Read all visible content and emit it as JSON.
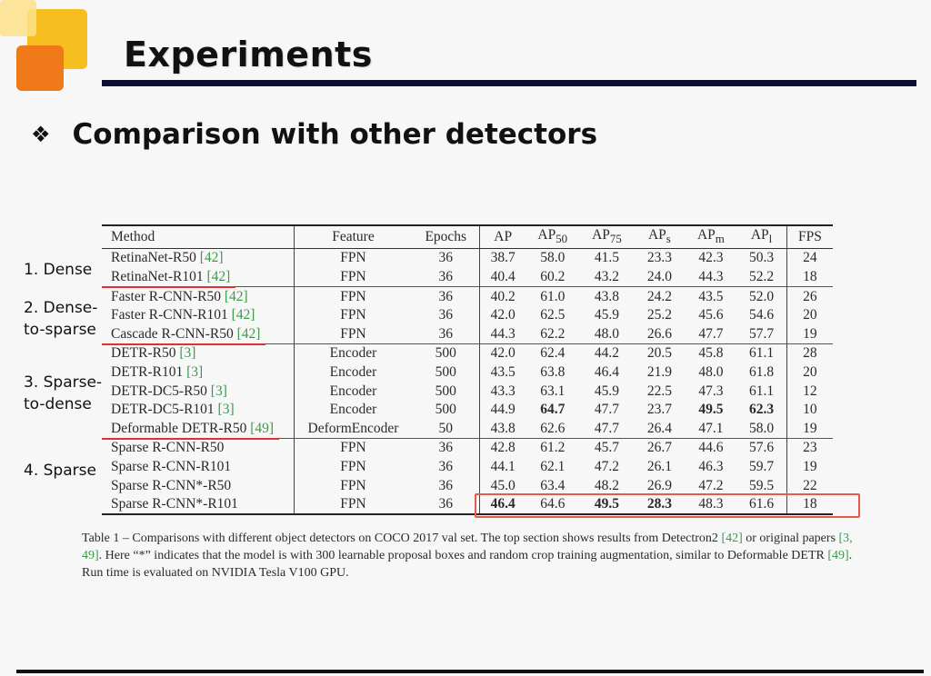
{
  "slide": {
    "title": "Experiments",
    "subtitle": "Comparison with other detectors",
    "subtitle_bullet": "❖"
  },
  "side_labels": [
    {
      "lines": [
        "1. Dense"
      ]
    },
    {
      "lines": [
        "2. Dense-",
        "to-sparse"
      ]
    },
    {
      "lines": [
        "3. Sparse-",
        "to-dense"
      ]
    },
    {
      "lines": [
        "4. Sparse"
      ]
    }
  ],
  "table": {
    "headers": {
      "method": "Method",
      "feature": "Feature",
      "epochs": "Epochs",
      "ap": "AP",
      "ap50_base": "AP",
      "ap50_sub": "50",
      "ap75_base": "AP",
      "ap75_sub": "75",
      "aps_base": "AP",
      "aps_sub": "s",
      "apm_base": "AP",
      "apm_sub": "m",
      "apl_base": "AP",
      "apl_sub": "l",
      "fps": "FPS"
    },
    "rows": [
      {
        "method": "RetinaNet-R50",
        "ref": "[42]",
        "feature": "FPN",
        "epochs": "36",
        "ap": "38.7",
        "ap50": "58.0",
        "ap75": "41.5",
        "aps": "23.3",
        "apm": "42.3",
        "apl": "50.3",
        "fps": "24"
      },
      {
        "method": "RetinaNet-R101",
        "ref": "[42]",
        "feature": "FPN",
        "epochs": "36",
        "ap": "40.4",
        "ap50": "60.2",
        "ap75": "43.2",
        "aps": "24.0",
        "apm": "44.3",
        "apl": "52.2",
        "fps": "18"
      },
      {
        "method": "Faster R-CNN-R50",
        "ref": "[42]",
        "feature": "FPN",
        "epochs": "36",
        "ap": "40.2",
        "ap50": "61.0",
        "ap75": "43.8",
        "aps": "24.2",
        "apm": "43.5",
        "apl": "52.0",
        "fps": "26"
      },
      {
        "method": "Faster R-CNN-R101",
        "ref": "[42]",
        "feature": "FPN",
        "epochs": "36",
        "ap": "42.0",
        "ap50": "62.5",
        "ap75": "45.9",
        "aps": "25.2",
        "apm": "45.6",
        "apl": "54.6",
        "fps": "20"
      },
      {
        "method": "Cascade R-CNN-R50",
        "ref": "[42]",
        "feature": "FPN",
        "epochs": "36",
        "ap": "44.3",
        "ap50": "62.2",
        "ap75": "48.0",
        "aps": "26.6",
        "apm": "47.7",
        "apl": "57.7",
        "fps": "19"
      },
      {
        "method": "DETR-R50",
        "ref": "[3]",
        "feature": "Encoder",
        "epochs": "500",
        "ap": "42.0",
        "ap50": "62.4",
        "ap75": "44.2",
        "aps": "20.5",
        "apm": "45.8",
        "apl": "61.1",
        "fps": "28"
      },
      {
        "method": "DETR-R101",
        "ref": "[3]",
        "feature": "Encoder",
        "epochs": "500",
        "ap": "43.5",
        "ap50": "63.8",
        "ap75": "46.4",
        "aps": "21.9",
        "apm": "48.0",
        "apl": "61.8",
        "fps": "20"
      },
      {
        "method": "DETR-DC5-R50",
        "ref": "[3]",
        "feature": "Encoder",
        "epochs": "500",
        "ap": "43.3",
        "ap50": "63.1",
        "ap75": "45.9",
        "aps": "22.5",
        "apm": "47.3",
        "apl": "61.1",
        "fps": "12"
      },
      {
        "method": "DETR-DC5-R101",
        "ref": "[3]",
        "feature": "Encoder",
        "epochs": "500",
        "ap": "44.9",
        "ap50": "64.7",
        "ap75": "47.7",
        "aps": "23.7",
        "apm": "49.5",
        "apl": "62.3",
        "fps": "10"
      },
      {
        "method": "Deformable DETR-R50",
        "ref": "[49]",
        "feature": "DeformEncoder",
        "epochs": "50",
        "ap": "43.8",
        "ap50": "62.6",
        "ap75": "47.7",
        "aps": "26.4",
        "apm": "47.1",
        "apl": "58.0",
        "fps": "19"
      },
      {
        "method": "Sparse R-CNN-R50",
        "ref": "",
        "feature": "FPN",
        "epochs": "36",
        "ap": "42.8",
        "ap50": "61.2",
        "ap75": "45.7",
        "aps": "26.7",
        "apm": "44.6",
        "apl": "57.6",
        "fps": "23"
      },
      {
        "method": "Sparse R-CNN-R101",
        "ref": "",
        "feature": "FPN",
        "epochs": "36",
        "ap": "44.1",
        "ap50": "62.1",
        "ap75": "47.2",
        "aps": "26.1",
        "apm": "46.3",
        "apl": "59.7",
        "fps": "19"
      },
      {
        "method": "Sparse R-CNN*-R50",
        "ref": "",
        "feature": "FPN",
        "epochs": "36",
        "ap": "45.0",
        "ap50": "63.4",
        "ap75": "48.2",
        "aps": "26.9",
        "apm": "47.2",
        "apl": "59.5",
        "fps": "22"
      },
      {
        "method": "Sparse R-CNN*-R101",
        "ref": "",
        "feature": "FPN",
        "epochs": "36",
        "ap": "46.4",
        "ap50": "64.6",
        "ap75": "49.5",
        "aps": "28.3",
        "apm": "48.3",
        "apl": "61.6",
        "fps": "18"
      }
    ],
    "bold_cells": [
      {
        "row": 8,
        "col": "ap50"
      },
      {
        "row": 8,
        "col": "apm"
      },
      {
        "row": 8,
        "col": "apl"
      },
      {
        "row": 13,
        "col": "ap"
      },
      {
        "row": 13,
        "col": "ap75"
      },
      {
        "row": 13,
        "col": "aps"
      }
    ],
    "section_starts": [
      2,
      5,
      10
    ],
    "underlined_rows": [
      1,
      4,
      9
    ],
    "highlighted_row": 13,
    "highlight_color": "#e55a4a",
    "underline_color": "#e03030",
    "reference_color": "#3a9a4a"
  },
  "caption": {
    "p1": "Table 1 – Comparisons with different object detectors on COCO 2017 val set. The top section shows results from Detectron2 ",
    "r1": "[42]",
    "p2": " or original papers ",
    "r2": "[3, 49]",
    "p3": ". Here “*” indicates that the model is with 300 learnable proposal boxes and random crop training augmentation, similar to Deformable DETR ",
    "r3": "[49]",
    "p4": ". Run time is evaluated on NVIDIA Tesla V100 GPU."
  }
}
